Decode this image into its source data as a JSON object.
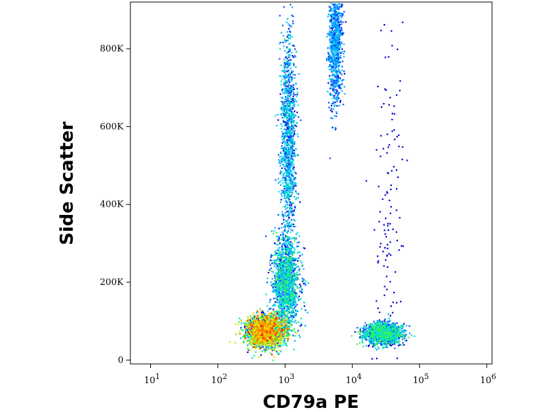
{
  "chart_data": {
    "type": "scatter",
    "plot_style": "density-colored flow cytometry dot plot",
    "title": "",
    "xlabel": "CD79a PE",
    "ylabel": "Side Scatter",
    "x_scale": "log",
    "xlim": [
      5,
      1200000
    ],
    "ylim": [
      -10000,
      920000
    ],
    "x_ticks": [
      {
        "value": 10,
        "base": "10",
        "exp": "1"
      },
      {
        "value": 100,
        "base": "10",
        "exp": "2"
      },
      {
        "value": 1000,
        "base": "10",
        "exp": "3"
      },
      {
        "value": 10000,
        "base": "10",
        "exp": "4"
      },
      {
        "value": 100000,
        "base": "10",
        "exp": "5"
      },
      {
        "value": 1000000,
        "base": "10",
        "exp": "6"
      }
    ],
    "y_ticks": [
      {
        "value": 0,
        "label": "0"
      },
      {
        "value": 200000,
        "label": "200K"
      },
      {
        "value": 400000,
        "label": "400K"
      },
      {
        "value": 600000,
        "label": "600K"
      },
      {
        "value": 800000,
        "label": "800K"
      }
    ],
    "grid": false,
    "legend": "none",
    "density_colors": [
      "#0000d0",
      "#0050ff",
      "#00b4ff",
      "#00e6c8",
      "#3cf050",
      "#c8f000",
      "#ffd200",
      "#ff7800",
      "#e61e00"
    ],
    "populations": [
      {
        "x_center": 500,
        "y_center": 75000,
        "x_spread_log10": 0.14,
        "y_spread": 20000,
        "relative_density": 1.0
      },
      {
        "x_center": 1000,
        "y_center": 200000,
        "x_spread_log10": 0.1,
        "y_spread": 60000,
        "relative_density": 0.55
      },
      {
        "x_center": 1100,
        "y_center": 560000,
        "x_spread_log10": 0.06,
        "y_spread": 150000,
        "relative_density": 0.45
      },
      {
        "x_center": 5500,
        "y_center": 820000,
        "x_spread_log10": 0.05,
        "y_spread": 80000,
        "relative_density": 0.35
      },
      {
        "x_center": 28000,
        "y_center": 70000,
        "x_spread_log10": 0.14,
        "y_spread": 14000,
        "relative_density": 0.55
      },
      {
        "x_center": 35000,
        "y_center": 400000,
        "x_spread_log10": 0.12,
        "y_spread": 230000,
        "relative_density": 0.05
      }
    ]
  }
}
